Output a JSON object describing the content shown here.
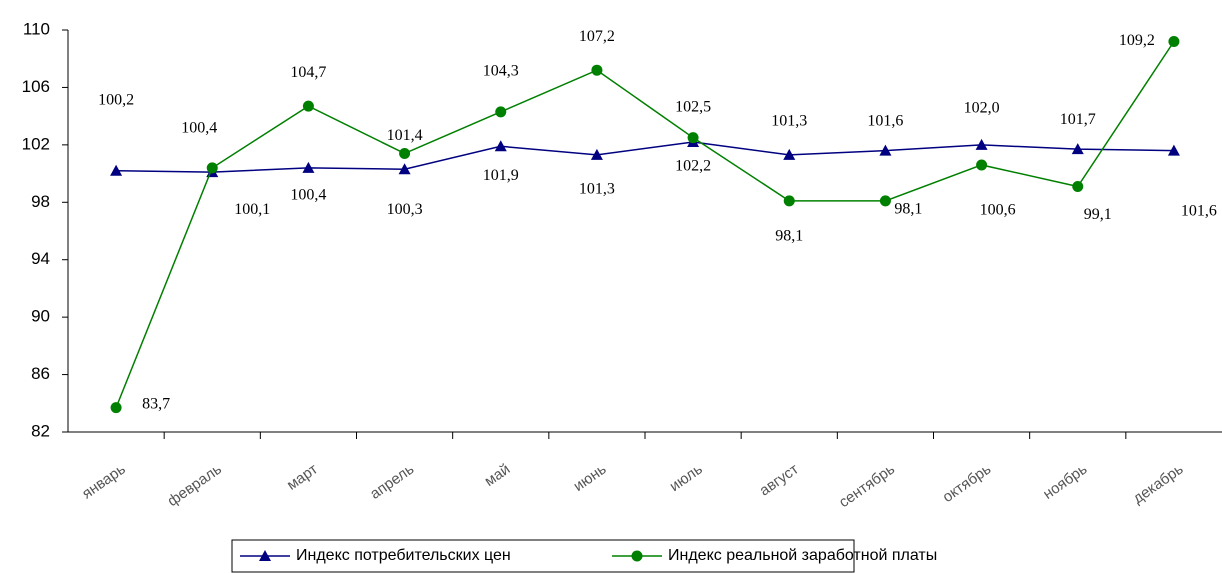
{
  "chart_data": {
    "type": "line",
    "categories": [
      "январь",
      "февраль",
      "март",
      "апрель",
      "май",
      "июнь",
      "июль",
      "август",
      "сентябрь",
      "октябрь",
      "ноябрь",
      "декабрь"
    ],
    "series": [
      {
        "name": "Индекс потребительских цен",
        "color": "#000080",
        "marker": "triangle",
        "values": [
          100.2,
          100.1,
          100.4,
          100.3,
          101.9,
          101.3,
          102.2,
          101.3,
          101.6,
          102.0,
          101.7,
          101.6
        ],
        "value_labels": [
          "100,2",
          "100,1",
          "100,4",
          "100,3",
          "101,9",
          "101,3",
          "102,2",
          "101,3",
          "101,6",
          "102,0",
          "101,7",
          "101,6"
        ]
      },
      {
        "name": "Индекс реальной заработной платы",
        "color": "#008000",
        "marker": "circle",
        "values": [
          83.7,
          100.4,
          104.7,
          101.4,
          104.3,
          107.2,
          102.5,
          98.1,
          98.1,
          100.6,
          99.1,
          109.2
        ],
        "value_labels": [
          "83,7",
          "100,4",
          "104,7",
          "101,4",
          "104,3",
          "107,2",
          "102,5",
          "98,1",
          "98,1",
          "100,6",
          "99,1",
          "109,2"
        ]
      }
    ],
    "ylim": [
      82,
      110
    ],
    "yticks": [
      82,
      86,
      90,
      94,
      98,
      102,
      106,
      110
    ],
    "grid": false,
    "legend": "bottom"
  }
}
